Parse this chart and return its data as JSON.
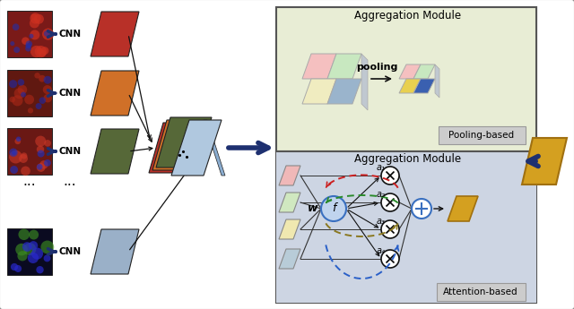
{
  "bg_color": "#ffffff",
  "outer_border": "#888888",
  "top_right_bg": "#e8edd5",
  "bottom_right_bg": "#cdd5e3",
  "feat_colors": [
    "#b83028",
    "#d07028",
    "#566838",
    "#9ab0c8"
  ],
  "stack_colors_back": [
    "#b83028",
    "#d07028"
  ],
  "stack_color_front": "#566838",
  "stack_panel_color": "#9ab0c8",
  "pool_in_colors": [
    [
      "#f5c0c0",
      "#c8e8c0"
    ],
    [
      "#f0ecc0",
      "#9ab4cc"
    ]
  ],
  "pool_out_colors": [
    [
      "#f5c0c0",
      "#c8e8c0"
    ],
    [
      "#e8d050",
      "#3a60b0"
    ]
  ],
  "attn_feat_colors": [
    "#f0b8b8",
    "#d0e8c0",
    "#f0e8b0",
    "#b8ccd8"
  ],
  "output_para_color": "#d4a020",
  "output_para_edge": "#a07010",
  "blue_arrow": "#1e3070",
  "black": "#111111",
  "gray": "#888888",
  "red_arc": "#cc2020",
  "green_arc": "#2a8a2a",
  "olive_arc": "#8a7820",
  "blue_arc": "#2a60c8",
  "f_fill": "#c0d4ee",
  "f_edge": "#3a70c0",
  "plus_fill": "#ffffff",
  "plus_edge": "#3a70c0",
  "times_fill": "#ffffff",
  "times_edge": "#111111",
  "pooling_label": "pooling",
  "agg_label": "Aggregation Module",
  "pool_based_label": "Pooling-based",
  "attn_based_label": "Attention-based",
  "w_label": "w",
  "f_label": "f",
  "cnn_label": "CNN",
  "alpha_labels": [
    "a₁",
    "a₂",
    "a₃",
    "a₄"
  ]
}
